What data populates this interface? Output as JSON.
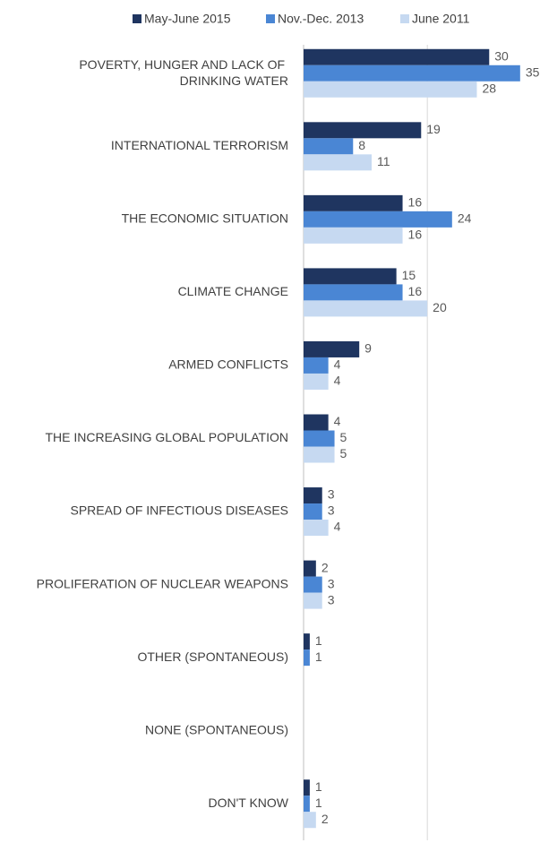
{
  "chart_data": {
    "type": "hbar",
    "categories": [
      "POVERTY, HUNGER AND LACK OF DRINKING WATER",
      "INTERNATIONAL TERRORISM",
      "THE ECONOMIC SITUATION",
      "CLIMATE CHANGE",
      "ARMED CONFLICTS",
      "THE INCREASING GLOBAL POPULATION",
      "SPREAD OF INFECTIOUS DISEASES",
      "PROLIFERATION OF NUCLEAR WEAPONS",
      "OTHER (SPONTANEOUS)",
      "NONE (SPONTANEOUS)",
      "DON'T KNOW"
    ],
    "series": [
      {
        "name": "May-June 2015",
        "color": "#1f3560",
        "values": [
          30,
          19,
          16,
          15,
          9,
          4,
          3,
          2,
          1,
          null,
          1
        ]
      },
      {
        "name": "Nov.-Dec. 2013",
        "color": "#4a86d4",
        "values": [
          35,
          8,
          24,
          16,
          4,
          5,
          3,
          3,
          1,
          null,
          1
        ]
      },
      {
        "name": "June 2011",
        "color": "#c6d9f1",
        "values": [
          28,
          11,
          16,
          20,
          4,
          5,
          4,
          3,
          null,
          null,
          2
        ]
      }
    ],
    "xlim": [
      0,
      38.5
    ],
    "xticks": [
      0,
      20
    ],
    "grid": true,
    "legend": "top"
  }
}
